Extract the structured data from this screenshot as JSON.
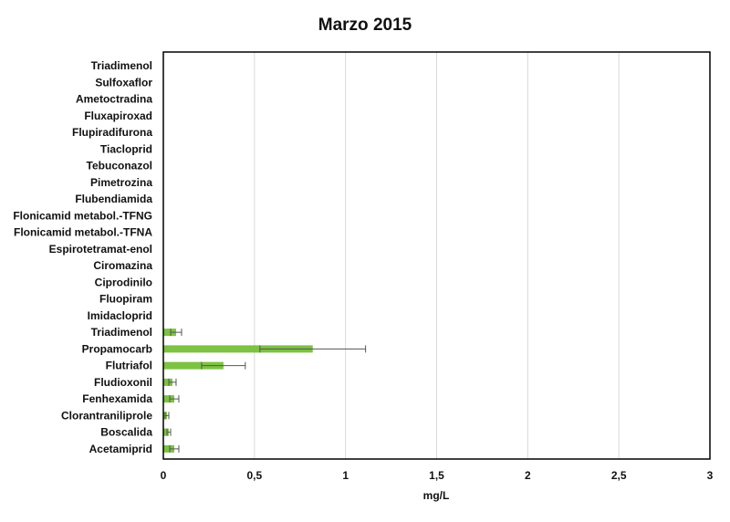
{
  "chart_data": {
    "type": "bar",
    "orientation": "horizontal",
    "title": "Marzo 2015",
    "xlabel": "mg/L",
    "ylabel": "",
    "xlim": [
      0,
      3
    ],
    "x_ticks": [
      "0",
      "0,5",
      "1",
      "1,5",
      "2",
      "2,5",
      "3"
    ],
    "x_tick_values": [
      0,
      0.5,
      1,
      1.5,
      2,
      2.5,
      3
    ],
    "grid": "vertical",
    "legend": "none",
    "categories": [
      "Triadimenol",
      "Sulfoxaflor",
      "Ametoctradina",
      "Fluxapiroxad",
      "Flupiradifurona",
      "Tiacloprid",
      "Tebuconazol",
      "Pimetrozina",
      "Flubendiamida",
      "Flonicamid metabol.-TFNG",
      "Flonicamid metabol.-TFNA",
      "Espirotetramat-enol",
      "Ciromazina",
      "Ciprodinilo",
      "Fluopiram",
      "Imidacloprid",
      "Triadimenol",
      "Propamocarb",
      "Flutriafol",
      "Fludioxonil",
      "Fenhexamida",
      "Clorantraniliprole",
      "Boscalida",
      "Acetamiprid"
    ],
    "values": [
      0,
      0,
      0,
      0,
      0,
      0,
      0,
      0,
      0,
      0,
      0,
      0,
      0,
      0,
      0,
      0,
      0.07,
      0.82,
      0.33,
      0.05,
      0.06,
      0.02,
      0.03,
      0.06
    ],
    "errors": [
      0,
      0,
      0,
      0,
      0,
      0,
      0,
      0,
      0,
      0,
      0,
      0,
      0,
      0,
      0,
      0,
      0.03,
      0.29,
      0.12,
      0.02,
      0.025,
      0.01,
      0.01,
      0.025
    ],
    "colors": {
      "bar": "#7dc242",
      "error": "#555555",
      "grid": "#d9d9d9",
      "frame": "#000000"
    }
  }
}
